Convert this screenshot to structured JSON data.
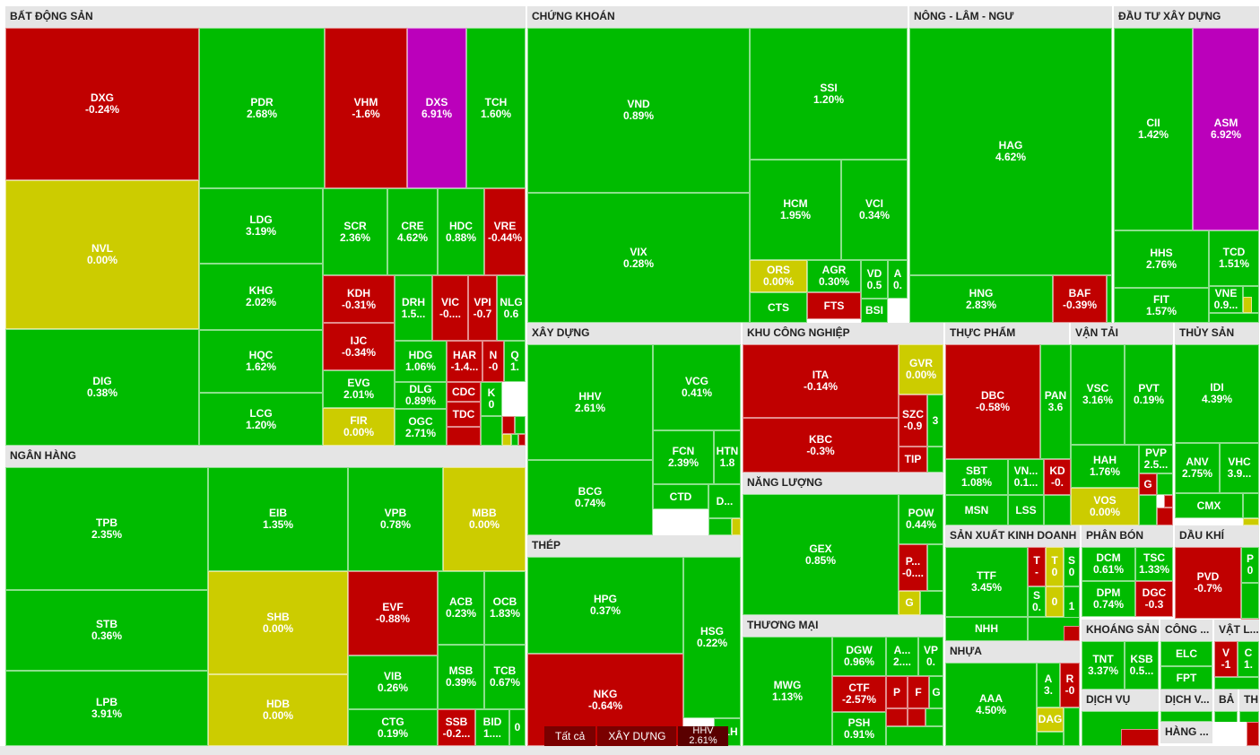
{
  "colors": {
    "up": "#00bb00",
    "down": "#c00000",
    "ref": "#cccc00",
    "ceiling": "#bb00bb",
    "header": "#e5e5e5"
  },
  "sectors": {
    "bds": "BẤT ĐỘNG SẢN",
    "ck": "CHỨNG KHOÁN",
    "nln": "NÔNG - LÂM - NGƯ",
    "dtxd": "ĐẦU TƯ XÂY DỰNG",
    "nh": "NGÂN HÀNG",
    "xd": "XÂY DỰNG",
    "kcn": "KHU CÔNG NGHIỆP",
    "tp": "THỰC PHẨM",
    "vt": "VẬN TẢI",
    "ts": "THỦY SẢN",
    "nl": "NĂNG LƯỢNG",
    "sxkd": "SẢN XUẤT KINH DOANH",
    "pb": "PHÂN BÓN",
    "dk": "DẦU KHÍ",
    "thep": "THÉP",
    "tm": "THƯƠNG MẠI",
    "nhua": "NHỰA",
    "ks": "KHOÁNG SẢN",
    "cn": "CÔNG ...",
    "vl": "VẬT L...",
    "dv": "DỊCH VỤ",
    "dv2": "DỊCH V...",
    "ba": "BẢ",
    "th": "TH",
    "hang": "HÀNG ..."
  },
  "breadcrumb": [
    "Tất cả",
    "XÂY DỰNG",
    "HHV",
    "2.61%"
  ],
  "tiles": {
    "DXG": [
      "DXG",
      "-0.24%"
    ],
    "NVL": [
      "NVL",
      "0.00%"
    ],
    "DIG": [
      "DIG",
      "0.38%"
    ],
    "PDR": [
      "PDR",
      "2.68%"
    ],
    "VHM": [
      "VHM",
      "-1.6%"
    ],
    "DXS": [
      "DXS",
      "6.91%"
    ],
    "TCH": [
      "TCH",
      "1.60%"
    ],
    "LDG": [
      "LDG",
      "3.19%"
    ],
    "KHG": [
      "KHG",
      "2.02%"
    ],
    "HQC": [
      "HQC",
      "1.62%"
    ],
    "LCG": [
      "LCG",
      "1.20%"
    ],
    "SCR": [
      "SCR",
      "2.36%"
    ],
    "CRE": [
      "CRE",
      "4.62%"
    ],
    "HDC": [
      "HDC",
      "0.88%"
    ],
    "VRE": [
      "VRE",
      "-0.44%"
    ],
    "KDH": [
      "KDH",
      "-0.31%"
    ],
    "DRH": [
      "DRH",
      "1.5..."
    ],
    "VIC": [
      "VIC",
      "-0...."
    ],
    "VPI": [
      "VPI",
      "-0.7"
    ],
    "NLG": [
      "NLG",
      "0.6"
    ],
    "IJC": [
      "IJC",
      "-0.34%"
    ],
    "HDG": [
      "HDG",
      "1.06%"
    ],
    "HAR": [
      "HAR",
      "-1.4..."
    ],
    "N": [
      "N",
      "-0"
    ],
    "Q": [
      "Q",
      "1."
    ],
    "EVG": [
      "EVG",
      "2.01%"
    ],
    "DLG": [
      "DLG",
      "0.89%"
    ],
    "CDC": [
      "CDC",
      ""
    ],
    "K": [
      "K",
      "0"
    ],
    "FIR": [
      "FIR",
      "0.00%"
    ],
    "OGC": [
      "OGC",
      "2.71%"
    ],
    "TDC": [
      "TDC",
      ""
    ],
    "VND": [
      "VND",
      "0.89%"
    ],
    "VIX": [
      "VIX",
      "0.28%"
    ],
    "SSI": [
      "SSI",
      "1.20%"
    ],
    "HCM": [
      "HCM",
      "1.95%"
    ],
    "VCI": [
      "VCI",
      "0.34%"
    ],
    "ORS": [
      "ORS",
      "0.00%"
    ],
    "AGR": [
      "AGR",
      "0.30%"
    ],
    "VD": [
      "VD",
      "0.5"
    ],
    "A0": [
      "A",
      "0."
    ],
    "CTS": [
      "CTS",
      ""
    ],
    "FTS": [
      "FTS",
      ""
    ],
    "BSI": [
      "BSI",
      ""
    ],
    "HAG": [
      "HAG",
      "4.62%"
    ],
    "HNG": [
      "HNG",
      "2.83%"
    ],
    "BAF": [
      "BAF",
      "-0.39%"
    ],
    "CII": [
      "CII",
      "1.42%"
    ],
    "ASM": [
      "ASM",
      "6.92%"
    ],
    "HHS": [
      "HHS",
      "2.76%"
    ],
    "TCD": [
      "TCD",
      "1.51%"
    ],
    "FIT": [
      "FIT",
      "1.57%"
    ],
    "VNE": [
      "VNE",
      "0.9..."
    ],
    "TPB": [
      "TPB",
      "2.35%"
    ],
    "STB": [
      "STB",
      "0.36%"
    ],
    "LPB": [
      "LPB",
      "3.91%"
    ],
    "EIB": [
      "EIB",
      "1.35%"
    ],
    "VPB": [
      "VPB",
      "0.78%"
    ],
    "MBB": [
      "MBB",
      "0.00%"
    ],
    "SHB": [
      "SHB",
      "0.00%"
    ],
    "HDB": [
      "HDB",
      "0.00%"
    ],
    "EVF": [
      "EVF",
      "-0.88%"
    ],
    "ACB": [
      "ACB",
      "0.23%"
    ],
    "OCB": [
      "OCB",
      "1.83%"
    ],
    "VIB": [
      "VIB",
      "0.26%"
    ],
    "MSB": [
      "MSB",
      "0.39%"
    ],
    "TCB": [
      "TCB",
      "0.67%"
    ],
    "CTG": [
      "CTG",
      "0.19%"
    ],
    "SSB": [
      "SSB",
      "-0.2..."
    ],
    "BID": [
      "BID",
      "1...."
    ],
    "Z0": [
      "0",
      ""
    ],
    "HHV": [
      "HHV",
      "2.61%"
    ],
    "VCG": [
      "VCG",
      "0.41%"
    ],
    "FCN": [
      "FCN",
      "2.39%"
    ],
    "HTN": [
      "HTN",
      "1.8"
    ],
    "BCG": [
      "BCG",
      "0.74%"
    ],
    "CTD": [
      "CTD",
      ""
    ],
    "Ddot": [
      "D...",
      ""
    ],
    "HPG": [
      "HPG",
      "0.37%"
    ],
    "HSG": [
      "HSG",
      "0.22%"
    ],
    "NKG": [
      "NKG",
      "-0.64%"
    ],
    "TLH": [
      "TLH",
      ""
    ],
    "ITA": [
      "ITA",
      "-0.14%"
    ],
    "GVR": [
      "GVR",
      "0.00%"
    ],
    "KBC": [
      "KBC",
      "-0.3%"
    ],
    "SZC": [
      "SZC",
      "-0.9"
    ],
    "K3": [
      "3",
      ""
    ],
    "TIP": [
      "TIP",
      ""
    ],
    "GEX": [
      "GEX",
      "0.85%"
    ],
    "POW": [
      "POW",
      "0.44%"
    ],
    "Pdot": [
      "P...",
      "-0...."
    ],
    "G1": [
      "G",
      ""
    ],
    "MWG": [
      "MWG",
      "1.13%"
    ],
    "DGW": [
      "DGW",
      "0.96%"
    ],
    "A2": [
      "A...",
      "2...."
    ],
    "VP": [
      "VP",
      "0."
    ],
    "CTF": [
      "CTF",
      "-2.57%"
    ],
    "PSH": [
      "PSH",
      "0.91%"
    ],
    "P1": [
      "P",
      ""
    ],
    "F1": [
      "F",
      ""
    ],
    "G2": [
      "G",
      ""
    ],
    "DBC": [
      "DBC",
      "-0.58%"
    ],
    "PAN": [
      "PAN",
      "3.6"
    ],
    "SBT": [
      "SBT",
      "1.08%"
    ],
    "VN1": [
      "VN...",
      "0.1..."
    ],
    "KD": [
      "KD",
      "-0."
    ],
    "MSN": [
      "MSN",
      ""
    ],
    "LSS": [
      "LSS",
      ""
    ],
    "VSC": [
      "VSC",
      "3.16%"
    ],
    "PVT": [
      "PVT",
      "0.19%"
    ],
    "HAH": [
      "HAH",
      "1.76%"
    ],
    "PVP": [
      "PVP",
      "2.5..."
    ],
    "G3": [
      "G",
      ""
    ],
    "VOS": [
      "VOS",
      "0.00%"
    ],
    "IDI": [
      "IDI",
      "4.39%"
    ],
    "ANV": [
      "ANV",
      "2.75%"
    ],
    "VHC": [
      "VHC",
      "3.9..."
    ],
    "CMX": [
      "CMX",
      ""
    ],
    "TTF": [
      "TTF",
      "3.45%"
    ],
    "NHH": [
      "NHH",
      ""
    ],
    "T1": [
      "T",
      "-"
    ],
    "T2": [
      "T",
      "0"
    ],
    "S1": [
      "S",
      "0"
    ],
    "S2": [
      "S",
      "0."
    ],
    "Z1": [
      "0",
      ""
    ],
    "O1": [
      "1",
      ""
    ],
    "DCM": [
      "DCM",
      "0.61%"
    ],
    "TSC": [
      "TSC",
      "1.33%"
    ],
    "DPM": [
      "DPM",
      "0.74%"
    ],
    "DGC": [
      "DGC",
      "-0.3"
    ],
    "PVD": [
      "PVD",
      "-0.7%"
    ],
    "P0": [
      "P",
      "0"
    ],
    "AAA": [
      "AAA",
      "4.50%"
    ],
    "A3": [
      "A",
      "3."
    ],
    "R0": [
      "R",
      "-0"
    ],
    "DAG": [
      "DAG",
      ""
    ],
    "TNT": [
      "TNT",
      "3.37%"
    ],
    "KSB": [
      "KSB",
      "0.5..."
    ],
    "ELC": [
      "ELC",
      ""
    ],
    "FPT": [
      "FPT",
      ""
    ],
    "V1": [
      "V",
      "-1"
    ],
    "C1": [
      "C",
      "1."
    ]
  }
}
